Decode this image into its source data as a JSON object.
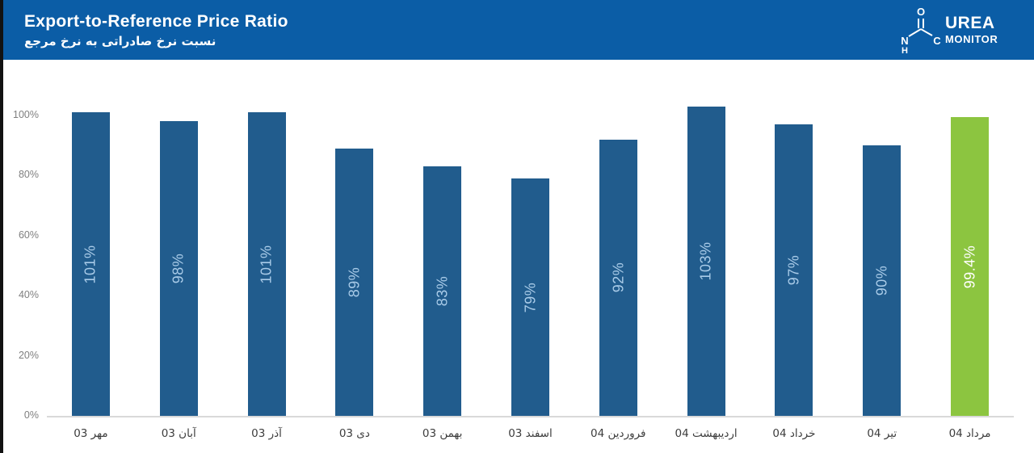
{
  "header": {
    "title_en": "Export-to-Reference Price Ratio",
    "title_fa": "نسبت نرخ صادراتی به نرخ مرجع",
    "logo": {
      "brand_top": "UREA",
      "brand_bottom": "MONITOR",
      "atom_o": "O",
      "atom_n": "N",
      "atom_h": "H",
      "atom_c": "C"
    }
  },
  "colors": {
    "header_bg": "#0B5DA6",
    "bar_blue": "#215C8D",
    "bar_green": "#8CC540",
    "label_on_blue": "#A9CBE8",
    "label_on_green": "#FFFFFF",
    "axis_text": "#7f7f7f",
    "x_label_text": "#3d3d3d",
    "baseline": "#D9D9D9"
  },
  "chart_data": {
    "type": "bar",
    "title": "Export-to-Reference Price Ratio",
    "subtitle": "نسبت نرخ صادراتی به نرخ مرجع",
    "categories": [
      "مهر 03",
      "آبان 03",
      "آذر 03",
      "دی 03",
      "بهمن 03",
      "اسفند 03",
      "فروردین 04",
      "اردیبهشت 04",
      "خرداد 04",
      "تیر 04",
      "مرداد 04"
    ],
    "values": [
      101,
      98,
      101,
      89,
      83,
      79,
      92,
      103,
      97,
      90,
      99.4
    ],
    "value_labels": [
      "101%",
      "98%",
      "101%",
      "89%",
      "83%",
      "79%",
      "92%",
      "103%",
      "97%",
      "90%",
      "99.4%"
    ],
    "highlight_index": 10,
    "y_ticks": [
      "0%",
      "20%",
      "40%",
      "60%",
      "80%",
      "100%"
    ],
    "ylim": [
      0,
      105
    ],
    "grid": "baseline-only",
    "legend": "none",
    "xlabel": "",
    "ylabel": ""
  }
}
